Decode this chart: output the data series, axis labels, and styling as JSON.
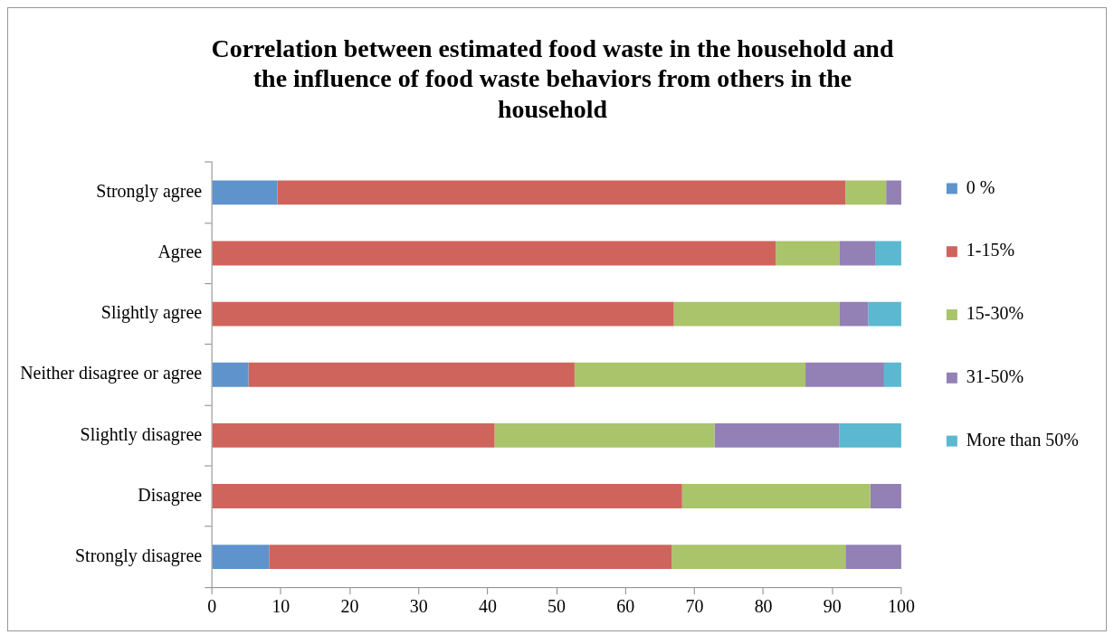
{
  "chart_data": {
    "type": "bar",
    "orientation": "horizontal",
    "stacked": true,
    "title": "Correlation between estimated food waste in the household and the influence of food waste behaviors from others in the household",
    "categories": [
      "Strongly agree",
      "Agree",
      "Slightly agree",
      "Neither disagree or agree",
      "Slightly disagree",
      "Disagree",
      "Strongly disagree"
    ],
    "series": [
      {
        "name": "0 %",
        "color": "#5e93cc",
        "values": [
          9.5,
          0,
          0,
          5.3,
          0,
          0,
          8.3
        ]
      },
      {
        "name": "1-15%",
        "color": "#cf645c",
        "values": [
          82.4,
          81.8,
          67.0,
          47.3,
          41.0,
          68.2,
          58.4
        ]
      },
      {
        "name": "15-30%",
        "color": "#a9c46a",
        "values": [
          5.9,
          9.2,
          24.0,
          33.5,
          31.9,
          27.3,
          25.2
        ]
      },
      {
        "name": "31-50%",
        "color": "#9380b5",
        "values": [
          2.2,
          5.3,
          4.2,
          11.4,
          18.1,
          4.5,
          8.1
        ]
      },
      {
        "name": "More than 50%",
        "color": "#5bb8d0",
        "values": [
          0,
          3.7,
          4.8,
          2.5,
          9.0,
          0,
          0
        ]
      }
    ],
    "xlim": [
      0,
      100
    ],
    "xticks": [
      0,
      10,
      20,
      30,
      40,
      50,
      60,
      70,
      80,
      90,
      100
    ],
    "grid": false,
    "legend": "right"
  }
}
